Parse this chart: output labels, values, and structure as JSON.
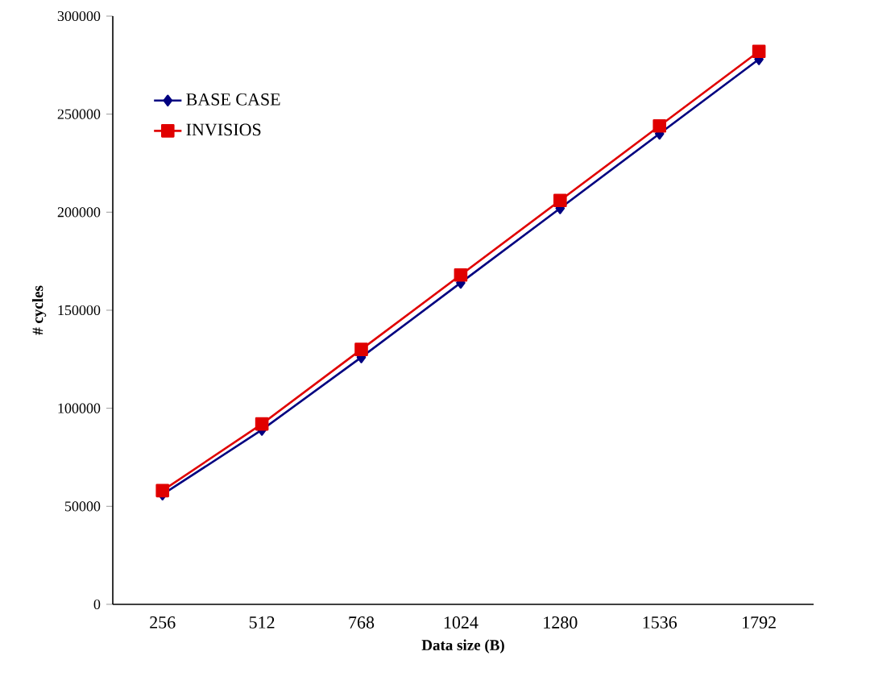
{
  "chart_data": {
    "type": "line",
    "xlabel": "Data size (B)",
    "ylabel": "# cycles",
    "categories": [
      "256",
      "512",
      "768",
      "1024",
      "1280",
      "1536",
      "1792"
    ],
    "series": [
      {
        "name": "BASE CASE",
        "color": "#000080",
        "marker": "diamond",
        "values": [
          56000,
          89000,
          126000,
          164000,
          202000,
          240000,
          278000
        ]
      },
      {
        "name": "INVISIOS",
        "color": "#e00000",
        "marker": "square",
        "values": [
          58000,
          92000,
          130000,
          168000,
          206000,
          244000,
          282000
        ]
      }
    ],
    "ylim": [
      0,
      300000
    ],
    "yticks": [
      0,
      50000,
      100000,
      150000,
      200000,
      250000,
      300000
    ],
    "grid": false,
    "legend": "top left"
  }
}
